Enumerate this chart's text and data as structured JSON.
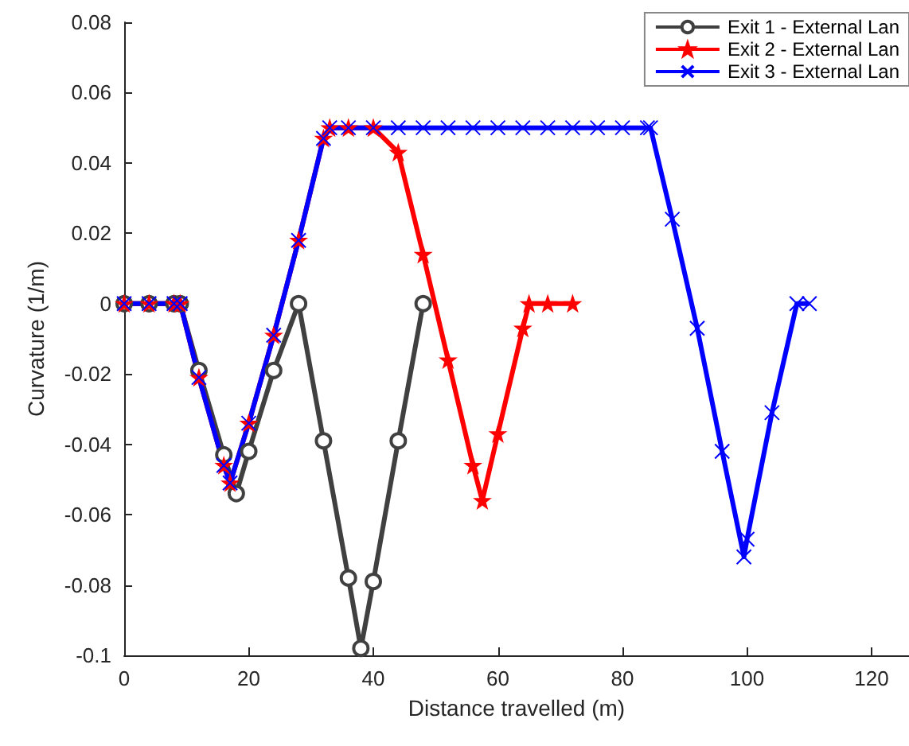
{
  "chart_data": {
    "type": "line",
    "xlabel": "Distance travelled (m)",
    "ylabel": "Curvature (1/m)",
    "xlim": [
      0,
      126
    ],
    "xticks": [
      0,
      20,
      40,
      60,
      80,
      100,
      120
    ],
    "ylim": [
      -0.1,
      0.08
    ],
    "yticks": [
      -0.1,
      -0.08,
      -0.06,
      -0.04,
      -0.02,
      0,
      0.02,
      0.04,
      0.06,
      0.08
    ],
    "grid": false,
    "legend": "top right",
    "series": [
      {
        "name": "Exit 1 - External Lan",
        "color": "#404040",
        "marker": "circle",
        "x": [
          0,
          4,
          8,
          9,
          12,
          16,
          18,
          20,
          24,
          28,
          32,
          36,
          38,
          40,
          44,
          48
        ],
        "values": [
          0,
          0,
          0,
          0,
          -0.019,
          -0.043,
          -0.054,
          -0.042,
          -0.019,
          0,
          -0.039,
          -0.078,
          -0.098,
          -0.079,
          -0.039,
          0
        ]
      },
      {
        "name": "Exit 2 - External Lan",
        "color": "#ff0000",
        "marker": "star",
        "x": [
          0,
          4,
          8,
          9,
          12,
          16,
          17,
          20,
          24,
          28,
          32,
          33,
          36,
          40,
          44,
          48,
          52,
          56,
          57.5,
          60,
          64,
          65,
          68,
          72
        ],
        "values": [
          0,
          0,
          0,
          0,
          -0.021,
          -0.046,
          -0.051,
          -0.034,
          -0.009,
          0.018,
          0.047,
          0.05,
          0.05,
          0.05,
          0.043,
          0.014,
          -0.016,
          -0.046,
          -0.056,
          -0.037,
          -0.007,
          0,
          0,
          0
        ]
      },
      {
        "name": "Exit 3 - External Lan",
        "color": "#0000ff",
        "marker": "cross",
        "x": [
          0,
          4,
          8,
          9,
          12,
          16,
          17,
          20,
          24,
          28,
          32,
          33,
          36,
          40,
          44,
          48,
          52,
          56,
          60,
          64,
          68,
          72,
          76,
          80,
          84,
          84.5,
          88,
          92,
          96,
          99.5,
          100,
          104,
          108,
          110
        ],
        "values": [
          0,
          0,
          0,
          0,
          -0.021,
          -0.046,
          -0.051,
          -0.034,
          -0.009,
          0.018,
          0.047,
          0.05,
          0.05,
          0.05,
          0.05,
          0.05,
          0.05,
          0.05,
          0.05,
          0.05,
          0.05,
          0.05,
          0.05,
          0.05,
          0.05,
          0.05,
          0.024,
          -0.007,
          -0.042,
          -0.072,
          -0.067,
          -0.031,
          0,
          0
        ]
      }
    ]
  }
}
